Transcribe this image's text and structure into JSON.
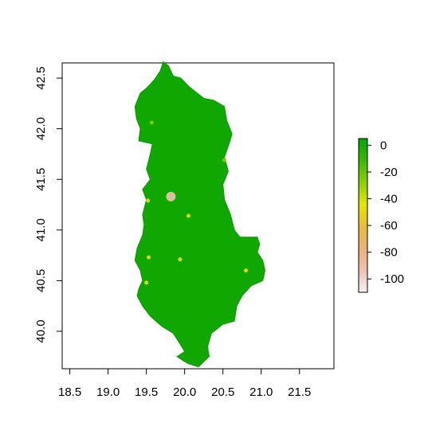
{
  "chart_data": {
    "type": "heatmap",
    "title": "",
    "xlabel": "",
    "ylabel": "",
    "xlim": [
      18.4,
      21.95
    ],
    "ylim": [
      39.63,
      42.65
    ],
    "x_ticks": [
      "18.5",
      "19.0",
      "19.5",
      "20.0",
      "20.5",
      "21.0",
      "21.5"
    ],
    "x_tick_values": [
      18.5,
      19.0,
      19.5,
      20.0,
      20.5,
      21.0,
      21.5
    ],
    "y_ticks": [
      "40.0",
      "40.5",
      "41.0",
      "41.5",
      "42.0",
      "42.5"
    ],
    "y_tick_values": [
      40.0,
      40.5,
      41.0,
      41.5,
      42.0,
      42.5
    ],
    "legend": {
      "placement": "right",
      "ticks": [
        "0",
        "-20",
        "-40",
        "-60",
        "-80",
        "-100"
      ],
      "tick_values": [
        0,
        -20,
        -40,
        -60,
        -80,
        -100
      ],
      "range": [
        -110,
        5
      ],
      "colors": [
        "#00a600",
        "#3bba00",
        "#8bd000",
        "#e6e600",
        "#e9bd3a",
        "#ecb176",
        "#efc2b3",
        "#f2f2f2"
      ]
    },
    "fill_color": "#10a800",
    "region_outline": [
      [
        19.72,
        42.66
      ],
      [
        19.79,
        42.62
      ],
      [
        19.85,
        42.52
      ],
      [
        19.95,
        42.5
      ],
      [
        20.05,
        42.42
      ],
      [
        20.15,
        42.36
      ],
      [
        20.25,
        42.3
      ],
      [
        20.38,
        42.28
      ],
      [
        20.52,
        42.22
      ],
      [
        20.55,
        42.08
      ],
      [
        20.62,
        41.95
      ],
      [
        20.58,
        41.85
      ],
      [
        20.52,
        41.72
      ],
      [
        20.57,
        41.58
      ],
      [
        20.5,
        41.45
      ],
      [
        20.52,
        41.3
      ],
      [
        20.6,
        41.15
      ],
      [
        20.65,
        41.0
      ],
      [
        20.72,
        40.93
      ],
      [
        20.95,
        40.93
      ],
      [
        20.98,
        40.86
      ],
      [
        20.95,
        40.78
      ],
      [
        21.02,
        40.7
      ],
      [
        21.05,
        40.6
      ],
      [
        21.02,
        40.5
      ],
      [
        20.87,
        40.45
      ],
      [
        20.75,
        40.35
      ],
      [
        20.68,
        40.25
      ],
      [
        20.65,
        40.1
      ],
      [
        20.5,
        40.07
      ],
      [
        20.35,
        39.98
      ],
      [
        20.3,
        39.85
      ],
      [
        20.32,
        39.75
      ],
      [
        20.18,
        39.65
      ],
      [
        20.05,
        39.68
      ],
      [
        20.0,
        39.7
      ],
      [
        19.9,
        39.75
      ],
      [
        20.0,
        39.8
      ],
      [
        19.92,
        39.9
      ],
      [
        19.85,
        39.98
      ],
      [
        19.7,
        40.05
      ],
      [
        19.55,
        40.15
      ],
      [
        19.45,
        40.25
      ],
      [
        19.38,
        40.35
      ],
      [
        19.4,
        40.42
      ],
      [
        19.45,
        40.5
      ],
      [
        19.42,
        40.6
      ],
      [
        19.35,
        40.7
      ],
      [
        19.38,
        40.82
      ],
      [
        19.45,
        40.95
      ],
      [
        19.47,
        41.05
      ],
      [
        19.45,
        41.15
      ],
      [
        19.5,
        41.3
      ],
      [
        19.45,
        41.4
      ],
      [
        19.55,
        41.5
      ],
      [
        19.5,
        41.6
      ],
      [
        19.55,
        41.75
      ],
      [
        19.58,
        41.85
      ],
      [
        19.4,
        41.88
      ],
      [
        19.42,
        42.0
      ],
      [
        19.37,
        42.1
      ],
      [
        19.35,
        42.22
      ],
      [
        19.42,
        42.35
      ],
      [
        19.5,
        42.4
      ],
      [
        19.6,
        42.48
      ],
      [
        19.68,
        42.57
      ]
    ],
    "hotspots": [
      {
        "x": 19.82,
        "y": 41.33,
        "value": -100
      },
      {
        "x": 19.52,
        "y": 41.29,
        "value": -45
      },
      {
        "x": 20.05,
        "y": 41.14,
        "value": -40
      },
      {
        "x": 19.53,
        "y": 40.73,
        "value": -40
      },
      {
        "x": 19.94,
        "y": 40.71,
        "value": -45
      },
      {
        "x": 20.8,
        "y": 40.6,
        "value": -40
      },
      {
        "x": 19.5,
        "y": 40.48,
        "value": -40
      },
      {
        "x": 19.57,
        "y": 42.06,
        "value": -35
      },
      {
        "x": 20.52,
        "y": 41.69,
        "value": -35
      }
    ]
  }
}
